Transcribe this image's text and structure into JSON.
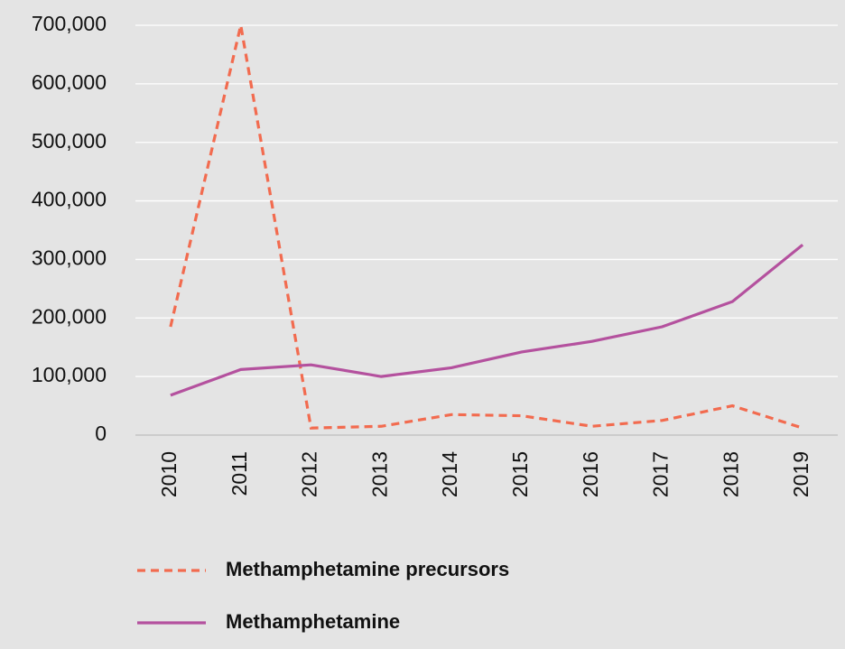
{
  "chart_data": {
    "type": "line",
    "categories": [
      "2010",
      "2011",
      "2012",
      "2013",
      "2014",
      "2015",
      "2016",
      "2017",
      "2018",
      "2019"
    ],
    "series": [
      {
        "name": "Methamphetamine precursors",
        "color": "#f26b4f",
        "dashed": true,
        "values": [
          185000,
          700000,
          12000,
          15000,
          35000,
          33000,
          15000,
          25000,
          50000,
          12000
        ]
      },
      {
        "name": "Methamphetamine",
        "color": "#b4519e",
        "dashed": false,
        "values": [
          68000,
          112000,
          120000,
          100000,
          115000,
          142000,
          160000,
          185000,
          228000,
          325000
        ]
      }
    ],
    "ylim": [
      0,
      700000
    ],
    "yticks": [
      0,
      {
        "value": 100000,
        "label": "100,000"
      },
      {
        "value": 200000,
        "label": "200,000"
      },
      {
        "value": 300000,
        "label": "300,000"
      },
      {
        "value": 400000,
        "label": "400,000"
      },
      {
        "value": 500000,
        "label": "500,000"
      },
      {
        "value": 600000,
        "label": "600,000"
      },
      {
        "value": 700000,
        "label": "700,000"
      }
    ],
    "grid": true,
    "legend": "bottom"
  }
}
